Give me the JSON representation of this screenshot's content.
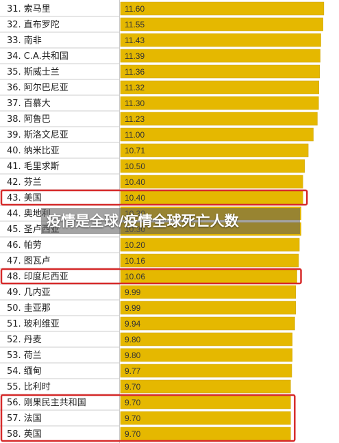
{
  "overlay_title": "疫情是全球/疫情全球死亡人数",
  "chart_data": {
    "type": "bar",
    "orientation": "horizontal",
    "bar_color": "#e5b800",
    "highlight_color": "#d62a2a",
    "xlim": [
      0,
      11.8
    ],
    "rows": [
      {
        "rank": "31.",
        "country": "索马里",
        "label": "11.60",
        "value": 11.6,
        "highlight": false
      },
      {
        "rank": "32.",
        "country": "直布罗陀",
        "label": "11.55",
        "value": 11.55,
        "highlight": false
      },
      {
        "rank": "33.",
        "country": "南非",
        "label": "11.43",
        "value": 11.43,
        "highlight": false
      },
      {
        "rank": "34.",
        "country": "C.A.共和国",
        "label": "11.39",
        "value": 11.39,
        "highlight": false
      },
      {
        "rank": "35.",
        "country": "斯威士兰",
        "label": "11.36",
        "value": 11.36,
        "highlight": false
      },
      {
        "rank": "36.",
        "country": "阿尔巴尼亚",
        "label": "11.32",
        "value": 11.32,
        "highlight": false
      },
      {
        "rank": "37.",
        "country": "百慕大",
        "label": "11.30",
        "value": 11.3,
        "highlight": false
      },
      {
        "rank": "38.",
        "country": "阿鲁巴",
        "label": "11.23",
        "value": 11.23,
        "highlight": false
      },
      {
        "rank": "39.",
        "country": "斯洛文尼亚",
        "label": "11.00",
        "value": 11.0,
        "highlight": false
      },
      {
        "rank": "40.",
        "country": "纳米比亚",
        "label": "10.71",
        "value": 10.71,
        "highlight": false
      },
      {
        "rank": "41.",
        "country": "毛里求斯",
        "label": "10.50",
        "value": 10.5,
        "highlight": false
      },
      {
        "rank": "42.",
        "country": "芬兰",
        "label": "10.40",
        "value": 10.4,
        "highlight": false
      },
      {
        "rank": "43.",
        "country": "美国",
        "label": "10.40",
        "value": 10.4,
        "highlight": true
      },
      {
        "rank": "44.",
        "country": "奥地利",
        "label": "10.30",
        "value": 10.3,
        "highlight": false
      },
      {
        "rank": "45.",
        "country": "圣卢西亚",
        "label": "10.30",
        "value": 10.3,
        "highlight": false
      },
      {
        "rank": "46.",
        "country": "帕劳",
        "label": "10.20",
        "value": 10.2,
        "highlight": false
      },
      {
        "rank": "47.",
        "country": "图瓦卢",
        "label": "10.16",
        "value": 10.16,
        "highlight": false
      },
      {
        "rank": "48.",
        "country": "印度尼西亚",
        "label": "10.06",
        "value": 10.06,
        "highlight": true
      },
      {
        "rank": "49.",
        "country": "几内亚",
        "label": "9.99",
        "value": 9.99,
        "highlight": false
      },
      {
        "rank": "50.",
        "country": "圭亚那",
        "label": "9.99",
        "value": 9.99,
        "highlight": false
      },
      {
        "rank": "51.",
        "country": "玻利维亚",
        "label": "9.94",
        "value": 9.94,
        "highlight": false
      },
      {
        "rank": "52.",
        "country": "丹麦",
        "label": "9.80",
        "value": 9.8,
        "highlight": false
      },
      {
        "rank": "53.",
        "country": "荷兰",
        "label": "9.80",
        "value": 9.8,
        "highlight": false
      },
      {
        "rank": "54.",
        "country": "缅甸",
        "label": "9.77",
        "value": 9.77,
        "highlight": false
      },
      {
        "rank": "55.",
        "country": "比利时",
        "label": "9.70",
        "value": 9.7,
        "highlight": false
      },
      {
        "rank": "56.",
        "country": "刚果民主共和国",
        "label": "9.70",
        "value": 9.7,
        "highlight": true
      },
      {
        "rank": "57.",
        "country": "法国",
        "label": "9.70",
        "value": 9.7,
        "highlight": true
      },
      {
        "rank": "58.",
        "country": "英国",
        "label": "9.70",
        "value": 9.7,
        "highlight": true
      }
    ]
  }
}
